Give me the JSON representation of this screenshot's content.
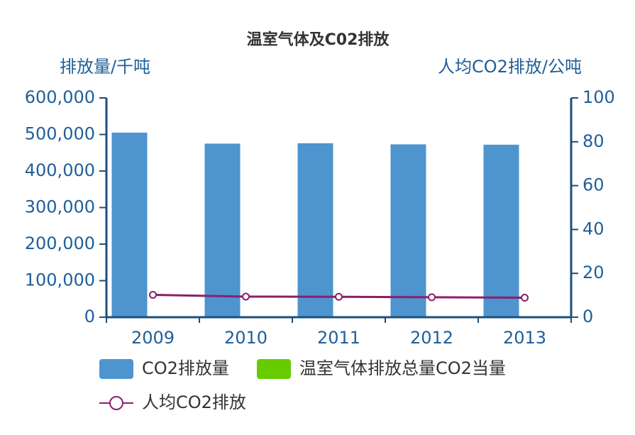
{
  "chart_data": {
    "type": "bar",
    "title": "温室气体及C02排放",
    "ylabel": "排放量/千吨",
    "y2label": "人均CO2排放/公吨",
    "categories": [
      "2009",
      "2010",
      "2011",
      "2012",
      "2013"
    ],
    "series": [
      {
        "name": "CO2排放量",
        "color": "#4e94cf",
        "type": "bar",
        "values": [
          505000,
          475000,
          476000,
          473000,
          472000
        ]
      },
      {
        "name": "温室气体排放总量CO2当量",
        "color": "#66cc00",
        "type": "bar",
        "values": [
          null,
          null,
          null,
          null,
          null
        ]
      },
      {
        "name": "人均CO2排放",
        "color": "#8a1f6a",
        "type": "line",
        "axis": "y2",
        "values": [
          10.2,
          9.4,
          9.3,
          9.1,
          8.9
        ]
      }
    ],
    "ylim": [
      0,
      600000
    ],
    "yticks": [
      0,
      {
        "value": 100000,
        "label": "100,000"
      },
      {
        "value": 200000,
        "label": "200,000"
      },
      {
        "value": 300000,
        "label": "300,000"
      },
      {
        "value": 400000,
        "label": "400,000"
      },
      {
        "value": 500000,
        "label": "500,000"
      },
      {
        "value": 600000,
        "label": "600,000"
      }
    ],
    "y2lim": [
      0,
      100
    ],
    "y2ticks": [
      0,
      20,
      40,
      60,
      80,
      100
    ]
  }
}
